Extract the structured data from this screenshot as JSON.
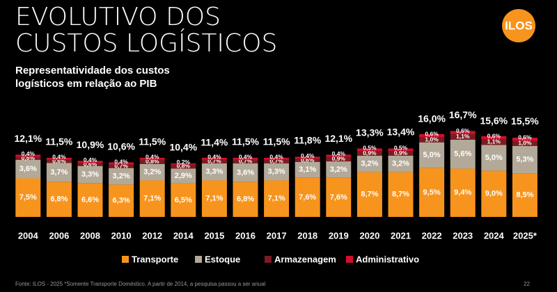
{
  "chart_data": {
    "type": "stacked-bar",
    "title": [
      "EVOLUTIVO DOS",
      "CUSTOS LOGÍSTICOS"
    ],
    "subtitle": [
      "Representatividade dos custos",
      "logísticos em relação ao PIB"
    ],
    "logo": "ILOS",
    "categories": [
      "2004",
      "2006",
      "2008",
      "2010",
      "2012",
      "2014",
      "2015",
      "2016",
      "2017",
      "2018",
      "2019",
      "2020",
      "2021",
      "2022",
      "2023",
      "2024",
      "2025*"
    ],
    "series": [
      {
        "name": "Transporte",
        "color": "#f7941d",
        "values": [
          7.5,
          6.8,
          6.6,
          6.3,
          7.1,
          6.5,
          7.1,
          6.8,
          7.1,
          7.6,
          7.6,
          8.7,
          8.7,
          9.5,
          9.4,
          9.0,
          8.5
        ],
        "value_labels": [
          "7,5%",
          "6,8%",
          "6,6%",
          "6,3%",
          "7,1%",
          "6,5%",
          "7,1%",
          "6,8%",
          "7,1%",
          "7,6%",
          "7,6%",
          "8,7%",
          "8,7%",
          "9,5%",
          "9,4%",
          "9,0%",
          "8,5%"
        ]
      },
      {
        "name": "Estoque",
        "color": "#b3a999",
        "values": [
          3.6,
          3.7,
          3.3,
          3.2,
          3.2,
          2.9,
          3.3,
          3.6,
          3.3,
          3.1,
          3.2,
          3.2,
          3.2,
          5.0,
          5.6,
          5.0,
          5.3
        ],
        "value_labels": [
          "3,6%",
          "3,7%",
          "3,3%",
          "3,2%",
          "3,2%",
          "2,9%",
          "3,3%",
          "3,6%",
          "3,3%",
          "3,1%",
          "3,2%",
          "3,2%",
          "3,2%",
          "5,0%",
          "5,6%",
          "5,0%",
          "5,3%"
        ]
      },
      {
        "name": "Armazenagem",
        "color": "#7b1c22",
        "values": [
          0.6,
          0.6,
          0.6,
          0.7,
          0.8,
          0.8,
          0.7,
          0.7,
          0.7,
          0.6,
          0.9,
          0.9,
          0.9,
          1.0,
          1.1,
          1.1,
          1.0
        ],
        "value_labels": [
          "0,6%",
          "0,6%",
          "0,6%",
          "0,7%",
          "0,8%",
          "0,8%",
          "0,7%",
          "0,7%",
          "0,7%",
          "0,6%",
          "0,9%",
          "0,9%",
          "0,9%",
          "1,0%",
          "1,1%",
          "1,1%",
          "1,0%"
        ]
      },
      {
        "name": "Administrativo",
        "color": "#d0102c",
        "values": [
          0.4,
          0.4,
          0.4,
          0.4,
          0.4,
          0.2,
          0.4,
          0.4,
          0.4,
          0.4,
          0.4,
          0.5,
          0.5,
          0.6,
          0.6,
          0.6,
          0.6
        ],
        "value_labels": [
          "0,4%",
          "0,4%",
          "0,4%",
          "0,4%",
          "0,4%",
          "0,2%",
          "0,4%",
          "0,4%",
          "0,4%",
          "0,4%",
          "0,4%",
          "0,5%",
          "0,5%",
          "0,6%",
          "0,6%",
          "0,6%",
          "0,6%"
        ]
      }
    ],
    "totals": {
      "values": [
        12.1,
        11.5,
        10.9,
        10.6,
        11.5,
        10.4,
        11.4,
        11.5,
        11.5,
        11.8,
        12.1,
        13.3,
        13.4,
        16.0,
        16.7,
        15.6,
        15.5
      ],
      "value_labels": [
        "12,1%",
        "11,5%",
        "10,9%",
        "10,6%",
        "11,5%",
        "10,4%",
        "11,4%",
        "11,5%",
        "11,5%",
        "11,8%",
        "12,1%",
        "13,3%",
        "13,4%",
        "16,0%",
        "16,7%",
        "15,6%",
        "15,5%"
      ]
    },
    "footnote": "Fonte: ILOS - 2025 *Somente Transporte Doméstico. A partir de 2014, a pesquisa passou a ser anual",
    "page_number": "22"
  }
}
